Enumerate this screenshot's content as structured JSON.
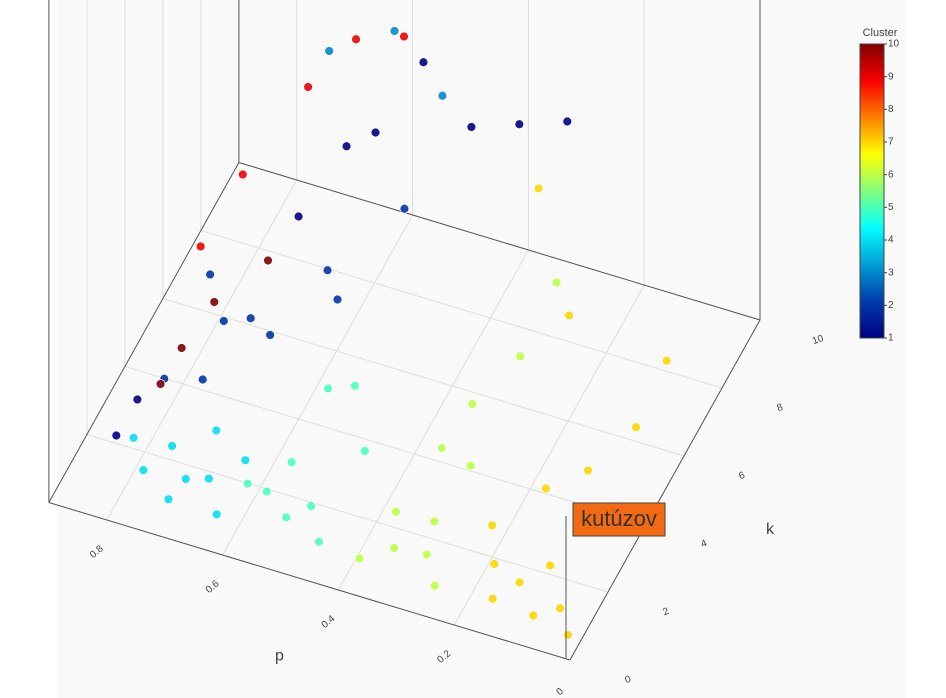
{
  "chart_data": {
    "type": "scatter3d",
    "x_label": "p",
    "y_label": "k",
    "colorbar_title": "Cluster",
    "hover_label": "kutúzov",
    "xlim": [
      0,
      0.9
    ],
    "ylim": [
      0,
      10
    ],
    "zlim": [
      0,
      1
    ],
    "xticks": [
      0,
      0.2,
      0.4,
      0.6,
      0.8
    ],
    "yticks": [
      0,
      2,
      4,
      6,
      8,
      10
    ],
    "clim": [
      1,
      10
    ],
    "cticks": [
      1,
      2,
      3,
      4,
      5,
      6,
      7,
      8,
      9,
      10
    ],
    "colorscale": [
      [
        0,
        "#000083"
      ],
      [
        0.125,
        "#003caa"
      ],
      [
        0.375,
        "#05ffff"
      ],
      [
        0.625,
        "#ffff00"
      ],
      [
        0.875,
        "#fa0000"
      ],
      [
        1,
        "#800000"
      ]
    ],
    "x": [
      0.02,
      0.05,
      0.08,
      0.1,
      0.12,
      0.15,
      0.18,
      0.06,
      0.1,
      0.14,
      0.05,
      0.2,
      0.03,
      0.1,
      0.12,
      0.25,
      0.28,
      0.3,
      0.33,
      0.35,
      0.27,
      0.3,
      0.25,
      0.22,
      0.38,
      0.32,
      0.45,
      0.48,
      0.5,
      0.53,
      0.55,
      0.42,
      0.47,
      0.5,
      0.57,
      0.62,
      0.65,
      0.68,
      0.7,
      0.72,
      0.75,
      0.78,
      0.66,
      0.6,
      0.7,
      0.75,
      0.65,
      0.6,
      0.55,
      0.5,
      0.68,
      0.72,
      0.45,
      0.8,
      0.78,
      0.6,
      0.55,
      0.5,
      0.45,
      0.4,
      0.35,
      0.3,
      0.72,
      0.68,
      0.62,
      0.74,
      0.72,
      0.68,
      0.6,
      0.55,
      0.5,
      0.58,
      0.5,
      0.45
    ],
    "y": [
      0.5,
      1,
      0.5,
      2,
      1,
      0.5,
      1.5,
      3,
      4,
      3,
      5,
      2,
      6,
      3,
      2,
      0.5,
      1,
      2,
      0.8,
      1.5,
      3,
      4,
      5,
      6,
      0.5,
      3,
      0.5,
      1,
      0.3,
      1.5,
      0.8,
      2,
      3,
      2.5,
      0.4,
      0.3,
      0.8,
      0.5,
      0.2,
      1,
      0.4,
      0.8,
      1.5,
      1.2,
      2,
      1.5,
      3,
      2.5,
      4,
      3,
      2.5,
      3,
      5,
      0.5,
      1,
      4,
      5,
      5,
      6,
      7,
      8,
      9,
      1.5,
      2,
      3,
      1,
      2.5,
      3.5,
      4.5,
      5.5,
      6.5,
      5,
      6,
      7
    ],
    "z": [
      0.01,
      0.02,
      0.03,
      0.02,
      0.05,
      0.04,
      0.03,
      0.05,
      0.08,
      0.1,
      0.12,
      0.07,
      0.2,
      0.5,
      0.85,
      0.03,
      0.05,
      0.04,
      0.06,
      0.08,
      0.1,
      0.15,
      0.2,
      0.3,
      0.04,
      0.12,
      0.05,
      0.08,
      0.1,
      0.12,
      0.1,
      0.15,
      0.2,
      0.22,
      0.14,
      0.06,
      0.09,
      0.1,
      0.07,
      0.12,
      0.1,
      0.13,
      0.14,
      0.12,
      0.2,
      0.22,
      0.28,
      0.3,
      0.35,
      0.38,
      0.3,
      0.35,
      0.45,
      0.15,
      0.2,
      0.45,
      0.55,
      0.6,
      0.7,
      0.5,
      0.45,
      0.4,
      0.3,
      0.38,
      0.42,
      0.25,
      0.45,
      0.55,
      0.7,
      0.75,
      0.7,
      0.75,
      0.75,
      0.55
    ],
    "cluster": [
      7,
      7,
      7,
      7,
      7,
      7,
      7,
      7,
      7,
      7,
      7,
      7,
      7,
      7,
      7,
      6,
      6,
      6,
      6,
      6,
      6,
      6,
      6,
      6,
      6,
      6,
      5,
      5,
      5,
      5,
      5,
      5,
      5,
      5,
      5,
      4,
      4,
      4,
      4,
      4,
      4,
      4,
      4,
      4,
      2,
      2,
      2,
      2,
      2,
      2,
      2,
      2,
      2,
      1,
      1,
      1,
      1,
      1,
      1,
      1,
      1,
      1,
      10,
      10,
      10,
      10,
      9,
      9,
      9,
      9,
      9,
      3,
      3,
      3
    ]
  }
}
